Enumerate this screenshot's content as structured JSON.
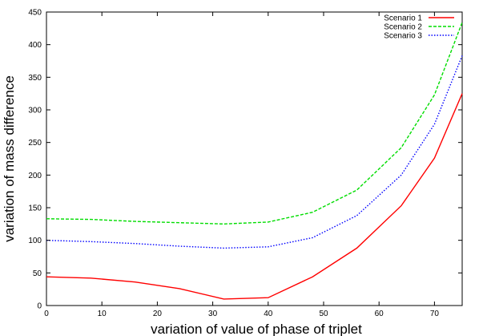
{
  "chart_data": {
    "type": "line",
    "title": "",
    "xlabel": "variation of value of phase of triplet",
    "ylabel": "variation of mass difference",
    "xlim": [
      0,
      75
    ],
    "ylim": [
      0,
      450
    ],
    "xticks": [
      0,
      10,
      20,
      30,
      40,
      50,
      60,
      70
    ],
    "yticks": [
      0,
      50,
      100,
      150,
      200,
      250,
      300,
      350,
      400,
      450
    ],
    "grid": false,
    "legend": "top-right",
    "series": [
      {
        "name": "Scenario 1",
        "color": "#ff0000",
        "style": "solid",
        "x": [
          0,
          8,
          16,
          24,
          32,
          40,
          48,
          56,
          64,
          70,
          75
        ],
        "y": [
          44,
          42,
          36,
          26,
          10,
          12,
          44,
          88,
          153,
          226,
          325
        ]
      },
      {
        "name": "Scenario 2",
        "color": "#00dd00",
        "style": "dashed",
        "x": [
          0,
          8,
          16,
          24,
          32,
          40,
          48,
          56,
          64,
          70,
          75
        ],
        "y": [
          133,
          132,
          129,
          127,
          125,
          128,
          143,
          177,
          242,
          323,
          434
        ]
      },
      {
        "name": "Scenario 3",
        "color": "#0000ff",
        "style": "dotted",
        "x": [
          0,
          8,
          16,
          24,
          32,
          40,
          48,
          56,
          64,
          70,
          75
        ],
        "y": [
          100,
          98,
          95,
          91,
          88,
          90,
          104,
          138,
          200,
          278,
          383
        ]
      }
    ]
  }
}
